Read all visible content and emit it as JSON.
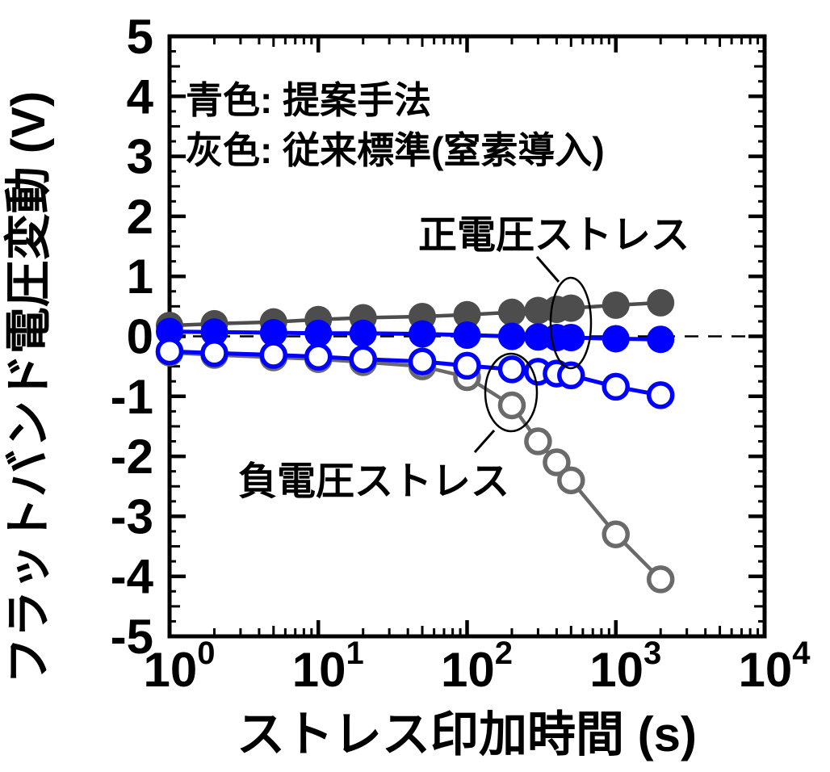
{
  "figure": {
    "title": "",
    "y_axis": {
      "title": "フラットバンド電圧変動 (V)",
      "tick_labels": [
        "5",
        "4",
        "3",
        "2",
        "1",
        "0",
        "-1",
        "-2",
        "-3",
        "-4",
        "-5"
      ],
      "tick_values": [
        5,
        4,
        3,
        2,
        1,
        0,
        -1,
        -2,
        -3,
        -4,
        -5
      ],
      "min": -5,
      "max": 5
    },
    "x_axis": {
      "title": "ストレス印加時間 (s)",
      "scale": "log",
      "tick_base": "10",
      "tick_exponents": [
        0,
        1,
        2,
        3,
        4
      ],
      "min": 1,
      "max": 10000
    },
    "legend": {
      "items": [
        {
          "label": "青色: 提案手法",
          "color": "#0000ff"
        },
        {
          "label": "灰色: 従来標準(窒素導入)",
          "color": "#6e6e6e"
        }
      ]
    },
    "annotations": [
      {
        "key": "positive-stress",
        "text": "正電圧ストレス",
        "color": "#000000"
      },
      {
        "key": "negative-stress",
        "text": "負電圧ストレス",
        "color": "#000000"
      }
    ]
  },
  "chart_data": {
    "type": "line",
    "x_scale": "log",
    "x": [
      1,
      2,
      5,
      10,
      20,
      50,
      100,
      200,
      300,
      400,
      500,
      1000,
      2000
    ],
    "series": [
      {
        "name": "従来標準(窒素導入) 正電圧ストレス",
        "key": "conventional-positive-stress",
        "color": "#4d4d4d",
        "marker": "filled-circle",
        "values": [
          0.18,
          0.21,
          0.24,
          0.28,
          0.31,
          0.33,
          0.36,
          0.4,
          0.43,
          0.45,
          0.47,
          0.52,
          0.56
        ]
      },
      {
        "name": "従来標準(窒素導入) 負電圧ストレス",
        "key": "conventional-negative-stress",
        "color": "#6a6a6a",
        "marker": "open-circle",
        "values": [
          -0.27,
          -0.31,
          -0.35,
          -0.38,
          -0.43,
          -0.5,
          -0.68,
          -1.15,
          -1.75,
          -2.1,
          -2.4,
          -3.3,
          -4.05
        ]
      },
      {
        "name": "提案手法 正電圧ストレス",
        "key": "proposed-positive-stress",
        "color": "#0000ff",
        "marker": "filled-circle",
        "values": [
          0.08,
          0.07,
          0.06,
          0.05,
          0.05,
          0.04,
          0.02,
          0.0,
          -0.01,
          -0.02,
          -0.02,
          -0.04,
          -0.05
        ]
      },
      {
        "name": "提案手法 負電圧ストレス",
        "key": "proposed-negative-stress",
        "color": "#0000ff",
        "marker": "open-circle",
        "values": [
          -0.25,
          -0.28,
          -0.31,
          -0.34,
          -0.38,
          -0.42,
          -0.49,
          -0.55,
          -0.59,
          -0.62,
          -0.65,
          -0.84,
          -0.98
        ]
      }
    ],
    "title": "",
    "xlabel": "ストレス印加時間 (s)",
    "ylabel": "フラットバンド電圧変動 (V)",
    "xlim": [
      1,
      10000
    ],
    "ylim": [
      -5,
      5
    ],
    "zero_line_dashed": true,
    "grid": false,
    "legend_position": "top-left"
  },
  "colors": {
    "blue": "#0000ff",
    "gray_filled": "#4d4d4d",
    "gray_open": "#6a6a6a",
    "gray_legend": "#6e6e6e",
    "black": "#000000",
    "background": "#ffffff"
  }
}
